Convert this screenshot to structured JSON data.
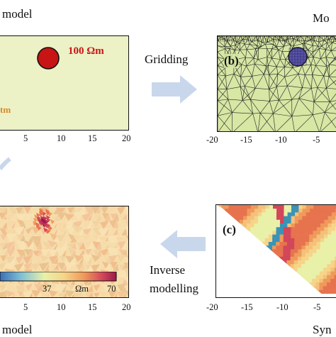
{
  "panel_a": {
    "title_fragment": "model",
    "anomaly_label": "100 Ωm",
    "background_fragment": "tm",
    "x_ticks": [
      "5",
      "10",
      "15",
      "20"
    ],
    "fill_color": "#ecf1c6",
    "anomaly_color": "#c81414"
  },
  "panel_b": {
    "title_fragment": "Mo",
    "label": "(b)",
    "x_ticks": [
      "-20",
      "-15",
      "-10",
      "-5"
    ],
    "fill_color": "#d7e7a4",
    "anomaly_color": "#5a54a8"
  },
  "panel_c": {
    "label": "(c)",
    "title_fragment": "Syn",
    "x_ticks": [
      "-20",
      "-15",
      "-10",
      "-5"
    ]
  },
  "panel_d": {
    "title_fragment": "model",
    "x_ticks": [
      "5",
      "10",
      "15",
      "20"
    ],
    "colorbar": {
      "mid_label": "37",
      "unit_label": "Ωm",
      "max_label": "70"
    }
  },
  "arrows": {
    "top": {
      "label": "Gridding"
    },
    "bottom": {
      "label_line1": "Inverse",
      "label_line2": "modelling"
    },
    "color": "#c9d7ec"
  }
}
